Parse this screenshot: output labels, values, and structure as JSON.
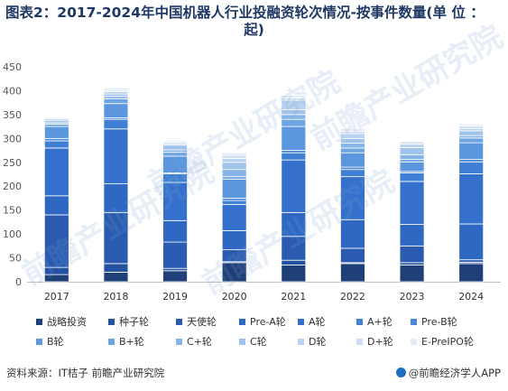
{
  "title_line1": "图表2：2017-2024年中国机器人行业投融资轮次情况-按事件数量(单 位 ：",
  "title_line2": "起)",
  "source": "资料来源：IT桔子 前瞻产业研究院",
  "brand": "@前瞻经济学人APP",
  "watermark": "前瞻产业研究院",
  "chart_data": {
    "type": "bar",
    "stacked": true,
    "categories": [
      "2017",
      "2018",
      "2019",
      "2020",
      "2021",
      "2022",
      "2023",
      "2024"
    ],
    "ylim": [
      0,
      450
    ],
    "yticks": [
      0,
      50,
      100,
      150,
      200,
      250,
      300,
      350,
      400,
      450
    ],
    "grid": false,
    "legend_position": "bottom",
    "series": [
      {
        "name": "战略投资",
        "color": "#1f3f78",
        "values": [
          15,
          20,
          23,
          40,
          35,
          38,
          35,
          38
        ]
      },
      {
        "name": "种子轮",
        "color": "#2451a0",
        "values": [
          15,
          18,
          5,
          2,
          10,
          2,
          5,
          3
        ]
      },
      {
        "name": "天使轮",
        "color": "#2a5bb0",
        "values": [
          110,
          107,
          55,
          25,
          50,
          30,
          35,
          5
        ]
      },
      {
        "name": "Pre-A轮",
        "color": "#2f68c3",
        "values": [
          40,
          60,
          45,
          40,
          50,
          60,
          45,
          75
        ]
      },
      {
        "name": "A轮",
        "color": "#3571cc",
        "values": [
          100,
          115,
          80,
          55,
          110,
          90,
          90,
          105
        ]
      },
      {
        "name": "A+轮",
        "color": "#3f7fd4",
        "values": [
          15,
          20,
          18,
          8,
          15,
          15,
          18,
          25
        ]
      },
      {
        "name": "Pre-B轮",
        "color": "#4a89d8",
        "values": [
          5,
          3,
          2,
          5,
          5,
          5,
          3,
          5
        ]
      },
      {
        "name": "B轮",
        "color": "#5b96de",
        "values": [
          25,
          30,
          35,
          40,
          50,
          30,
          20,
          35
        ]
      },
      {
        "name": "B+轮",
        "color": "#6fa4e2",
        "values": [
          5,
          10,
          8,
          5,
          15,
          10,
          5,
          10
        ]
      },
      {
        "name": "C+轮",
        "color": "#87b4e7",
        "values": [
          3,
          5,
          5,
          15,
          10,
          10,
          10,
          5
        ]
      },
      {
        "name": "C轮",
        "color": "#a0c3ec",
        "values": [
          5,
          5,
          10,
          15,
          10,
          10,
          15,
          10
        ]
      },
      {
        "name": "D轮",
        "color": "#b9d2ef",
        "values": [
          3,
          5,
          3,
          8,
          20,
          10,
          7,
          5
        ]
      },
      {
        "name": "D+轮",
        "color": "#cfdff3",
        "values": [
          2,
          3,
          3,
          7,
          5,
          5,
          5,
          5
        ]
      },
      {
        "name": "E-PreIPO轮",
        "color": "#e2ebf6",
        "values": [
          2,
          5,
          3,
          5,
          5,
          5,
          2,
          4
        ]
      }
    ]
  }
}
